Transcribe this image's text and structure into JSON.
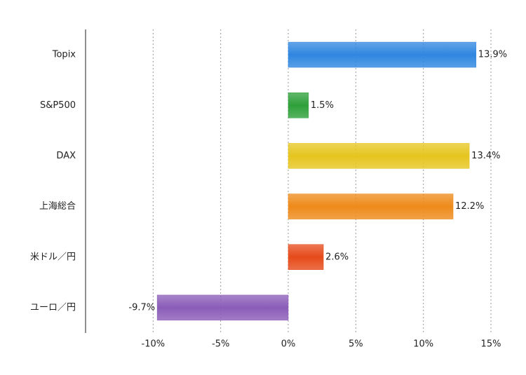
{
  "chart_data": {
    "type": "bar",
    "orientation": "horizontal",
    "categories": [
      "Topix",
      "S&P500",
      "DAX",
      "上海総合",
      "米ドル／円",
      "ユーロ／円"
    ],
    "values": [
      13.9,
      1.5,
      13.4,
      12.2,
      2.6,
      -9.7
    ],
    "value_labels": [
      "13.9%",
      "1.5%",
      "13.4%",
      "12.2%",
      "2.6%",
      "-9.7%"
    ],
    "colors": [
      "#2f86e0",
      "#2ea03a",
      "#e6c51e",
      "#ee8a1a",
      "#e64a1a",
      "#8a5cb8"
    ],
    "xlim": [
      -15,
      15
    ],
    "xticks": [
      {
        "value": -10,
        "label": "-10%"
      },
      {
        "value": -5,
        "label": "-5%"
      },
      {
        "value": 0,
        "label": "0%"
      },
      {
        "value": 5,
        "label": "5%"
      },
      {
        "value": 10,
        "label": "10%"
      },
      {
        "value": 15,
        "label": "15%"
      }
    ],
    "grid": true
  }
}
